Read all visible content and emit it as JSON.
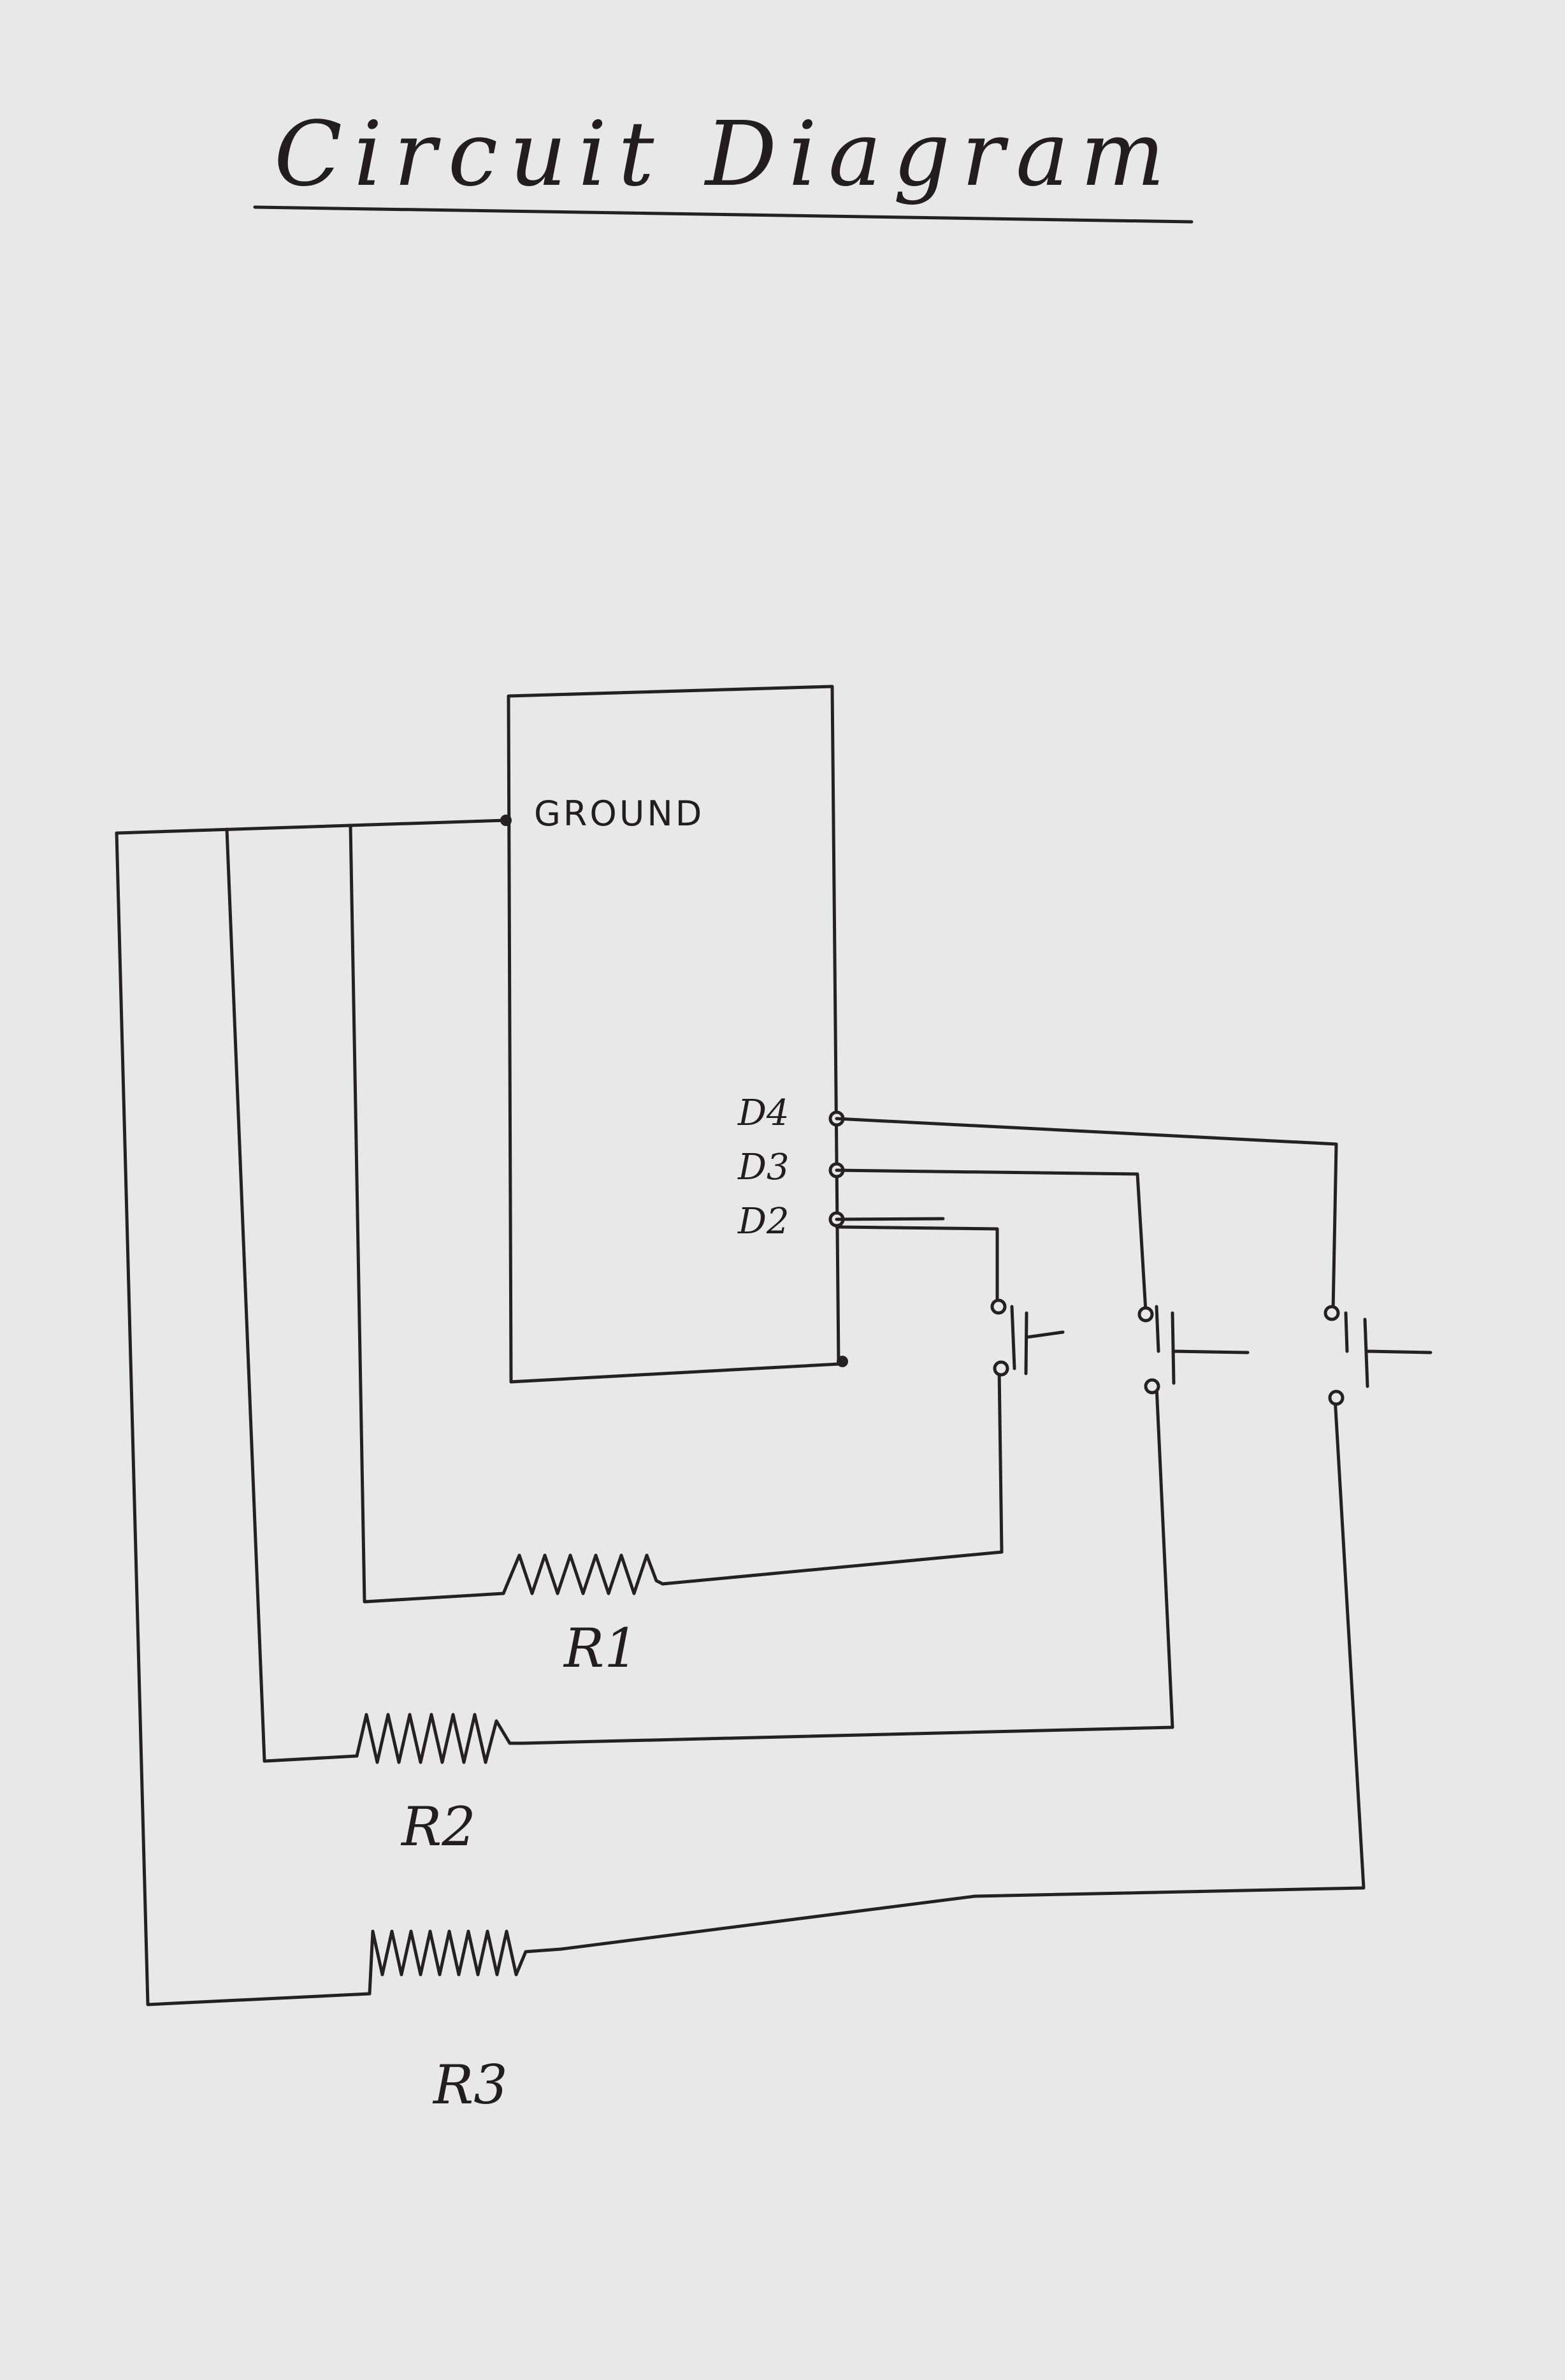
{
  "diagram": {
    "title": "Circuit Diagram",
    "board": {
      "ground_label": "GROUND",
      "pins": [
        "D4",
        "D3",
        "D2"
      ]
    },
    "resistors": [
      "R1",
      "R2",
      "R3"
    ],
    "ink_color": "#262022",
    "paper_color": "#e8e8e8"
  }
}
